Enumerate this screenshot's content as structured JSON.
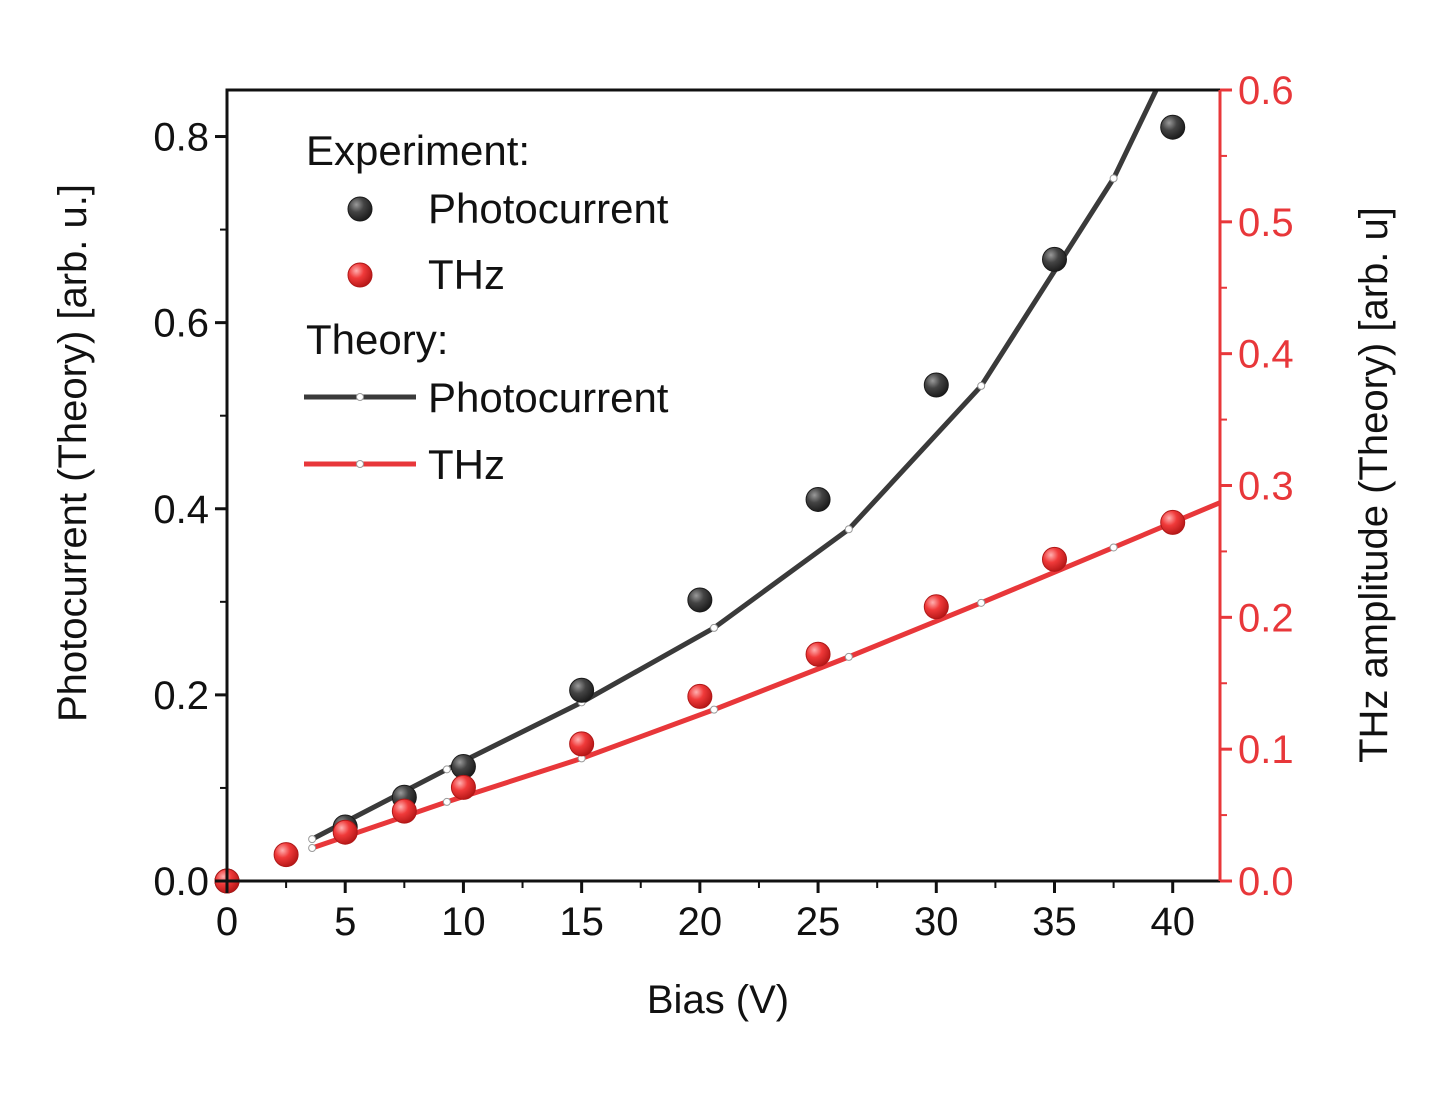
{
  "chart_data": {
    "type": "scatter",
    "xlabel": "Bias (V)",
    "ylabel_left": "Photocurrent (Theory) [arb. u.]",
    "ylabel_right": "THz amplitude (Theory) [arb. u]",
    "xlim": [
      0,
      42
    ],
    "ylim_left": [
      0,
      0.85
    ],
    "ylim_right": [
      0,
      0.6
    ],
    "x_ticks": [
      0,
      5,
      10,
      15,
      20,
      25,
      30,
      35,
      40
    ],
    "x_tick_labels": [
      "0",
      "5",
      "10",
      "15",
      "20",
      "25",
      "30",
      "35",
      "40"
    ],
    "y_left_ticks": [
      0.0,
      0.2,
      0.4,
      0.6,
      0.8
    ],
    "y_left_tick_labels": [
      "0.0",
      "0.2",
      "0.4",
      "0.6",
      "0.8"
    ],
    "y_right_ticks": [
      0.0,
      0.1,
      0.2,
      0.3,
      0.4,
      0.5,
      0.6
    ],
    "y_right_tick_labels": [
      "0.0",
      "0.1",
      "0.2",
      "0.3",
      "0.4",
      "0.5",
      "0.6"
    ],
    "colors": {
      "photocurrent": "#3a3a3a",
      "thz": "#e8373a",
      "right_axis": "#e8373a"
    },
    "legend": {
      "experiment_header": "Experiment:",
      "theory_header": "Theory:",
      "photocurrent": "Photocurrent",
      "thz": "THz"
    },
    "series": [
      {
        "name": "Photocurrent (Experiment)",
        "kind": "markers",
        "axis": "left",
        "x": [
          0,
          5,
          7.5,
          10,
          15,
          20,
          25,
          30,
          35,
          40
        ],
        "y": [
          0.0,
          0.058,
          0.09,
          0.123,
          0.205,
          0.302,
          0.41,
          0.533,
          0.668,
          0.81
        ]
      },
      {
        "name": "THz (Experiment)",
        "kind": "markers",
        "axis": "right",
        "x": [
          0,
          2.5,
          5,
          7.5,
          10,
          15,
          20,
          25,
          30,
          35,
          40
        ],
        "y": [
          0.0,
          0.02,
          0.037,
          0.053,
          0.071,
          0.104,
          0.14,
          0.172,
          0.208,
          0.244,
          0.272
        ]
      },
      {
        "name": "Photocurrent (Theory)",
        "kind": "line",
        "axis": "left",
        "x": [
          3.6,
          9.3,
          15.0,
          20.6,
          26.3,
          31.9,
          37.5,
          39.3
        ],
        "y": [
          0.045,
          0.12,
          0.192,
          0.272,
          0.378,
          0.532,
          0.755,
          0.85
        ]
      },
      {
        "name": "THz (Theory)",
        "kind": "line",
        "axis": "right",
        "x": [
          3.6,
          9.3,
          15.0,
          20.6,
          26.3,
          31.9,
          37.5,
          42.0
        ],
        "y": [
          0.025,
          0.06,
          0.093,
          0.13,
          0.17,
          0.211,
          0.253,
          0.287
        ]
      }
    ]
  }
}
